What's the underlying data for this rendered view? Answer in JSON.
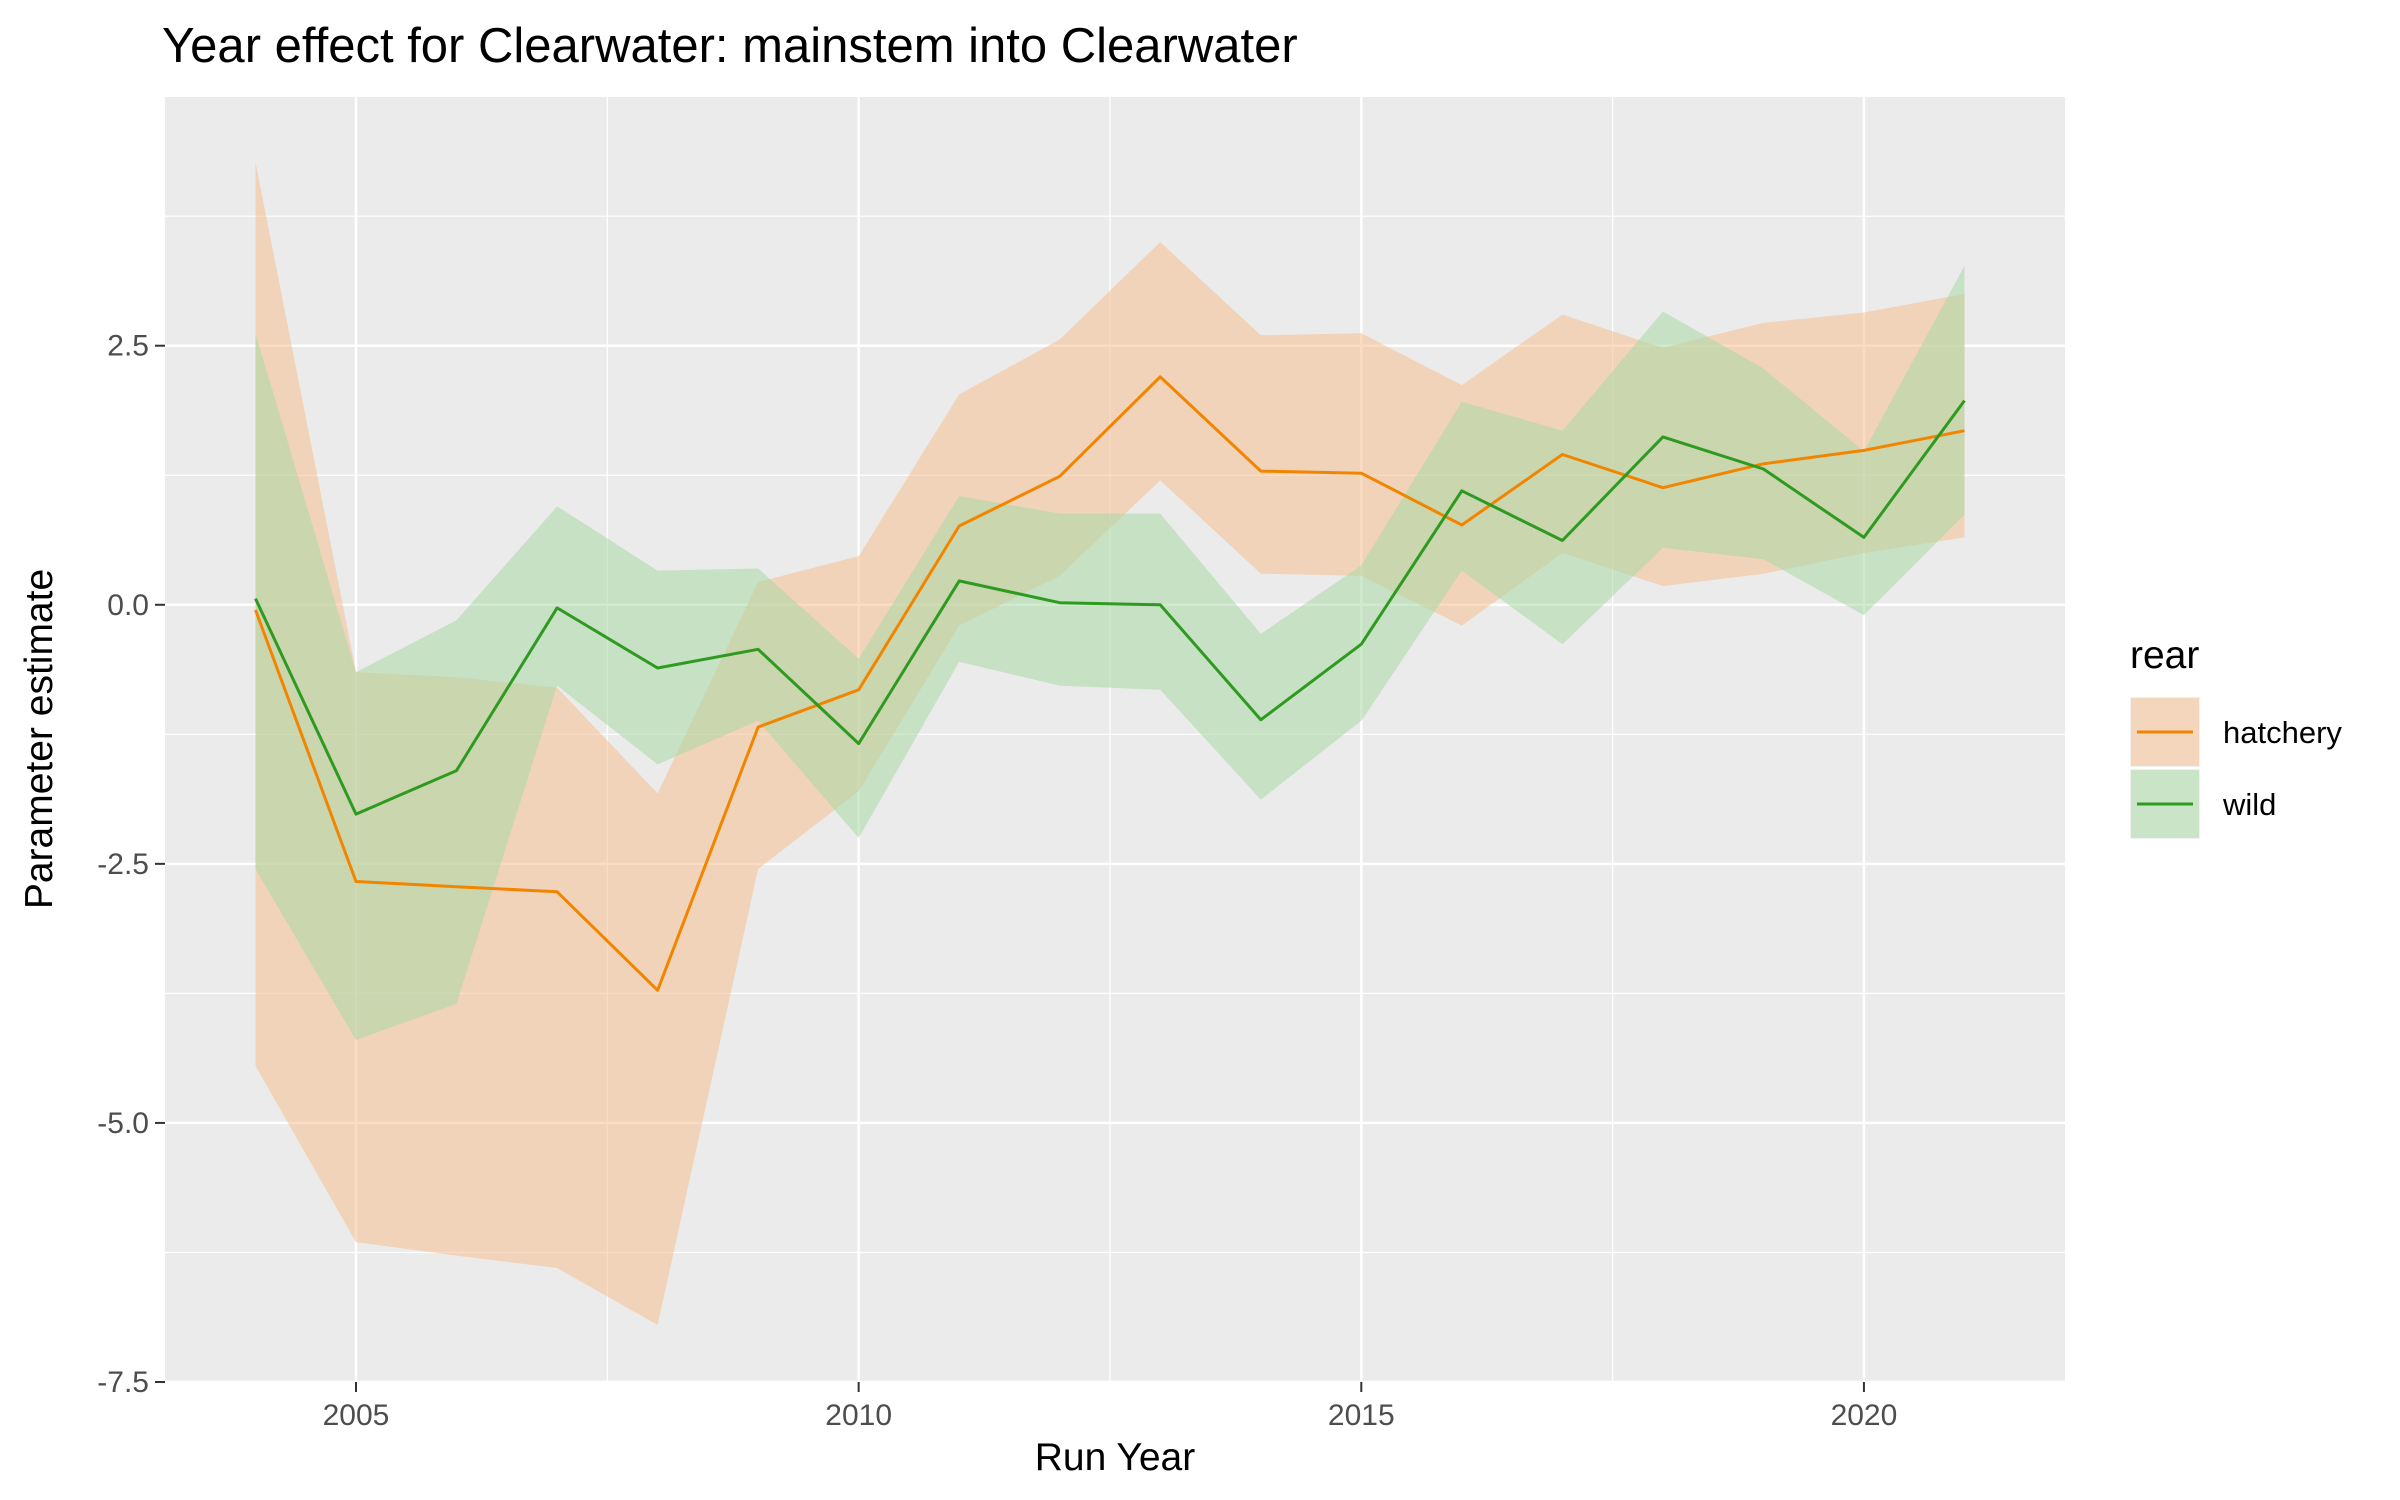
{
  "chart_data": {
    "type": "line",
    "title": "Year effect for Clearwater: mainstem into Clearwater",
    "xlabel": "Run Year",
    "ylabel": "Parameter estimate",
    "xlim": [
      2003.1,
      2022.0
    ],
    "ylim": [
      -7.5,
      4.9
    ],
    "x_ticks": [
      2005,
      2010,
      2015,
      2020
    ],
    "x_tick_labels": [
      "2005",
      "2010",
      "2015",
      "2020"
    ],
    "y_ticks": [
      2.5,
      0.0,
      -2.5,
      -5.0,
      -7.5
    ],
    "y_tick_labels": [
      "2.5",
      "0.0",
      "-2.5",
      "-5.0",
      "-7.5"
    ],
    "grid": true,
    "legend": {
      "title": "rear",
      "placement": "right"
    },
    "series": [
      {
        "name": "hatchery",
        "color": "#F28500",
        "ribbon_color": "#F5C08F",
        "x": [
          2004,
          2005,
          2006,
          2007,
          2008,
          2009,
          2010,
          2011,
          2012,
          2013,
          2014,
          2015,
          2016,
          2017,
          2018,
          2019,
          2020,
          2021
        ],
        "y": [
          -0.05,
          -2.67,
          -2.72,
          -2.77,
          -3.72,
          -1.18,
          -0.82,
          0.76,
          1.24,
          2.2,
          1.29,
          1.27,
          0.77,
          1.45,
          1.13,
          1.36,
          1.49,
          1.68
        ],
        "lower": [
          -4.45,
          -6.15,
          -6.28,
          -6.4,
          -6.95,
          -2.55,
          -1.8,
          -0.2,
          0.28,
          1.2,
          0.3,
          0.28,
          -0.2,
          0.5,
          0.18,
          0.3,
          0.5,
          0.65
        ],
        "upper": [
          4.27,
          -0.65,
          -0.7,
          -0.8,
          -1.82,
          0.22,
          0.47,
          2.03,
          2.56,
          3.5,
          2.6,
          2.62,
          2.12,
          2.8,
          2.48,
          2.72,
          2.82,
          3.0
        ]
      },
      {
        "name": "wild",
        "color": "#2E9A20",
        "ribbon_color": "#A9D9A6",
        "x": [
          2004,
          2005,
          2006,
          2007,
          2008,
          2009,
          2010,
          2011,
          2012,
          2013,
          2014,
          2015,
          2016,
          2017,
          2018,
          2019,
          2020,
          2021
        ],
        "y": [
          0.06,
          -2.02,
          -1.6,
          -0.03,
          -0.61,
          -0.43,
          -1.34,
          0.23,
          0.02,
          0.0,
          -1.11,
          -0.38,
          1.1,
          0.62,
          1.62,
          1.31,
          0.65,
          1.97
        ],
        "lower": [
          -2.55,
          -4.2,
          -3.85,
          -0.78,
          -1.54,
          -1.12,
          -2.25,
          -0.55,
          -0.78,
          -0.82,
          -1.88,
          -1.12,
          0.33,
          -0.38,
          0.55,
          0.44,
          -0.1,
          0.87
        ],
        "upper": [
          2.62,
          -0.65,
          -0.15,
          0.95,
          0.33,
          0.35,
          -0.52,
          1.05,
          0.88,
          0.88,
          -0.28,
          0.38,
          1.96,
          1.68,
          2.83,
          2.28,
          1.48,
          3.27
        ]
      }
    ]
  }
}
